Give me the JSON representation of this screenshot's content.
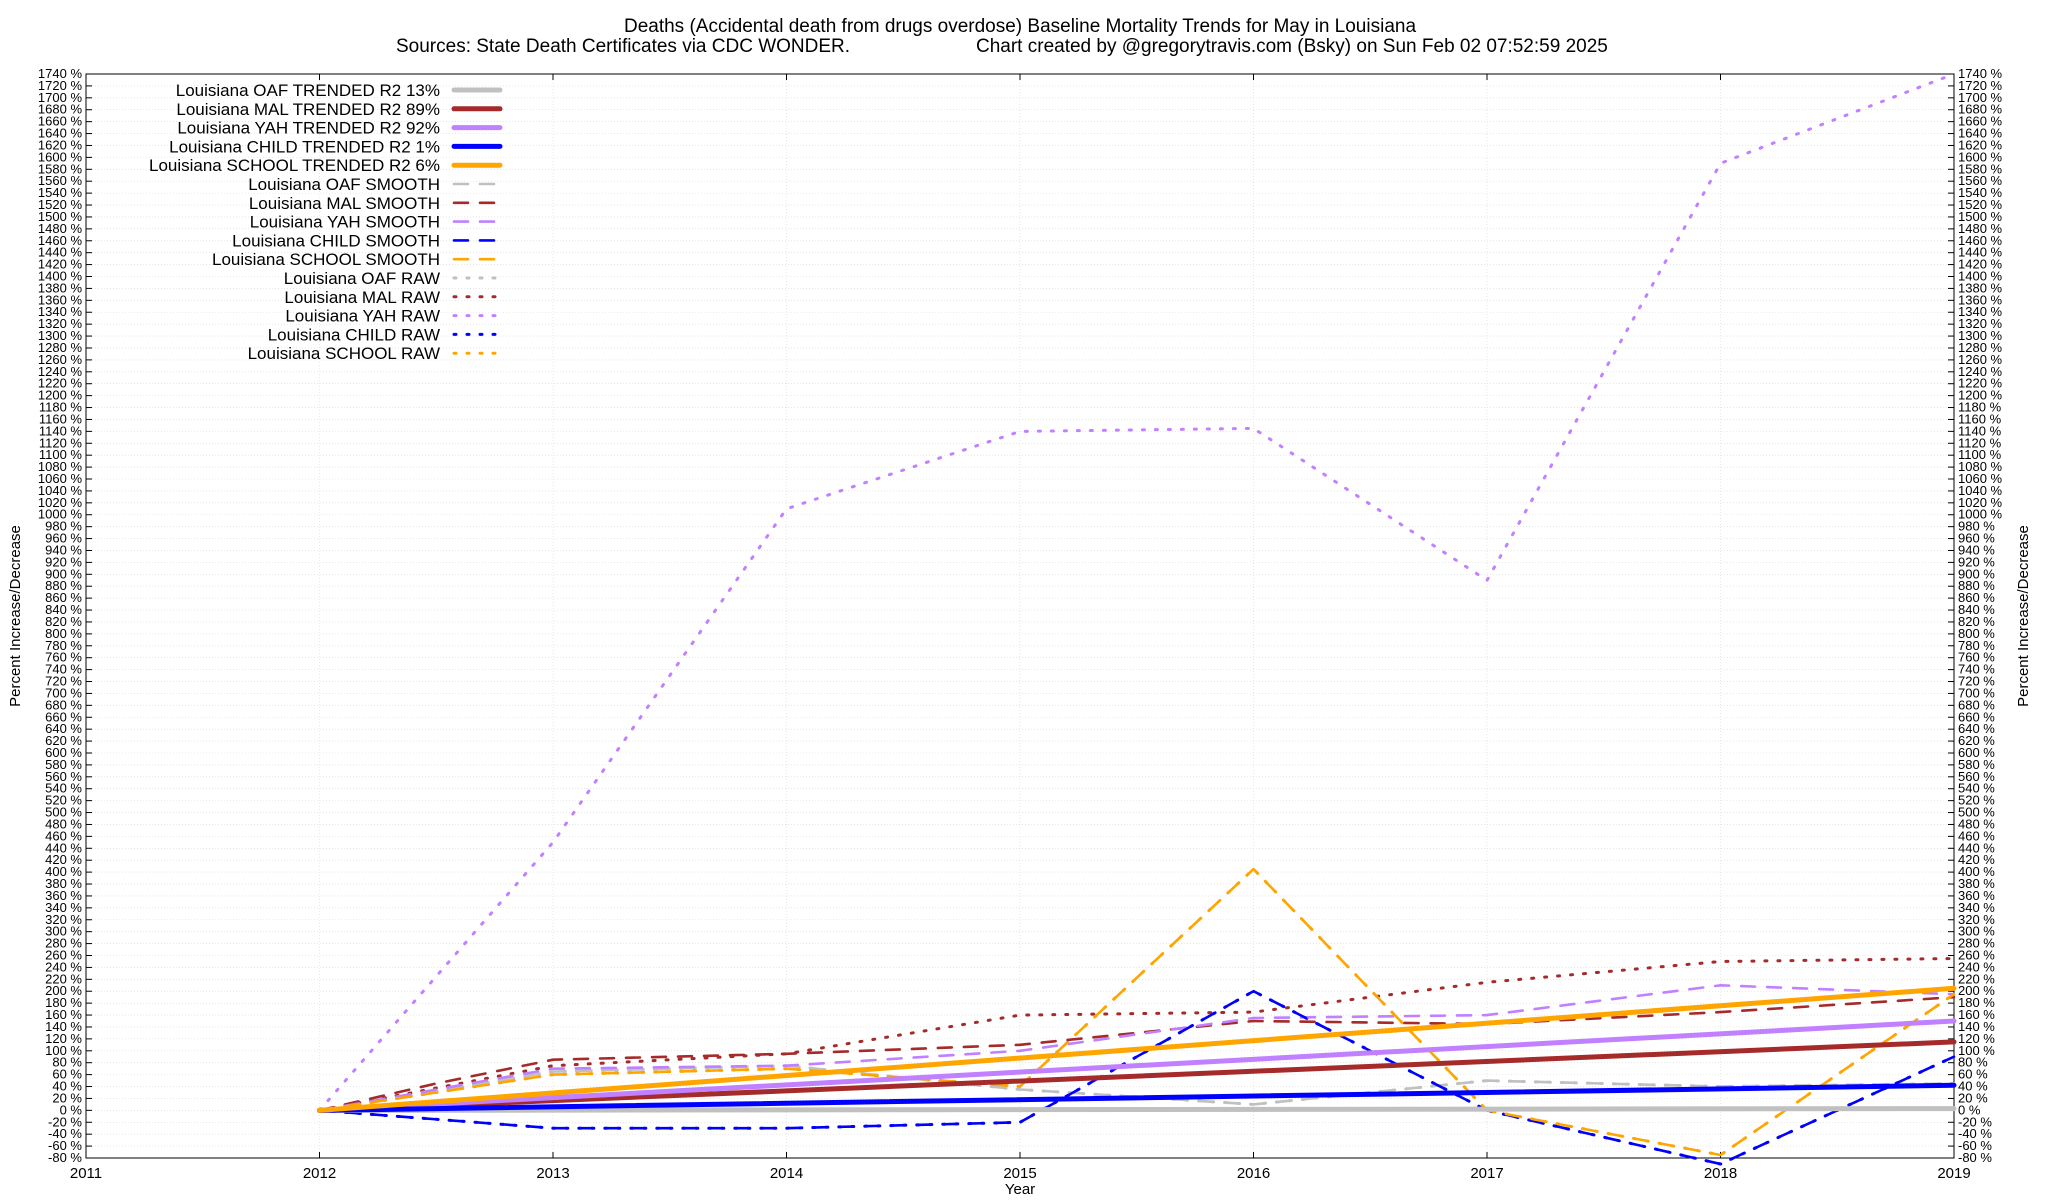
{
  "chart_data": {
    "type": "line",
    "title": "Deaths (Accidental death from drugs overdose)  Baseline Mortality Trends for May in Louisiana",
    "subtitle_left": "Sources: State Death Certificates via CDC WONDER.",
    "subtitle_right": "Chart created by @gregorytravis.com (Bsky) on Sun Feb 02 07:52:59 2025",
    "xlabel": "Year",
    "ylabel": "Percent Increase/Decrease",
    "ylabel_right": "Percent Increase/Decrease",
    "xlim": [
      2011,
      2019
    ],
    "ylim": [
      -80,
      1740
    ],
    "x_ticks": [
      "2011",
      "2012",
      "2013",
      "2014",
      "2015",
      "2016",
      "2017",
      "2018",
      "2019"
    ],
    "y_tick_step": 20,
    "y_tick_suffix": " %",
    "grid": true,
    "legend_position": "top-left",
    "series": [
      {
        "name": "Louisiana OAF TRENDED R2  13%",
        "style": "solid",
        "color": "#c0c0c0",
        "x": [
          2012,
          2019
        ],
        "values": [
          0,
          3
        ]
      },
      {
        "name": "Louisiana MAL TRENDED R2  89%",
        "style": "solid",
        "color": "#a52a2a",
        "x": [
          2012,
          2019
        ],
        "values": [
          0,
          115
        ]
      },
      {
        "name": "Louisiana YAH TRENDED R2  92%",
        "style": "solid",
        "color": "#c080ff",
        "x": [
          2012,
          2019
        ],
        "values": [
          0,
          150
        ]
      },
      {
        "name": "Louisiana CHILD TRENDED R2   1%",
        "style": "solid",
        "color": "#0000ff",
        "x": [
          2012,
          2019
        ],
        "values": [
          0,
          42
        ]
      },
      {
        "name": "Louisiana SCHOOL TRENDED R2   6%",
        "style": "solid",
        "color": "#ffa500",
        "x": [
          2012,
          2019
        ],
        "values": [
          0,
          205
        ]
      },
      {
        "name": "Louisiana OAF SMOOTH",
        "style": "dashed",
        "color": "#c0c0c0",
        "x": [
          2012,
          2013,
          2014,
          2015,
          2016,
          2017,
          2018,
          2019
        ],
        "values": [
          0,
          65,
          75,
          35,
          10,
          50,
          40,
          45
        ]
      },
      {
        "name": "Louisiana MAL SMOOTH",
        "style": "dashed",
        "color": "#a52a2a",
        "x": [
          2012,
          2012.5,
          2013,
          2014,
          2015,
          2016,
          2017,
          2018,
          2019
        ],
        "values": [
          0,
          45,
          85,
          95,
          110,
          150,
          145,
          165,
          190
        ]
      },
      {
        "name": "Louisiana YAH SMOOTH",
        "style": "dashed",
        "color": "#c080ff",
        "x": [
          2012,
          2013,
          2014,
          2015,
          2016,
          2017,
          2018,
          2019
        ],
        "values": [
          0,
          70,
          75,
          100,
          155,
          160,
          210,
          195
        ]
      },
      {
        "name": "Louisiana CHILD SMOOTH",
        "style": "dashed",
        "color": "#0000ff",
        "x": [
          2012,
          2013,
          2014,
          2015,
          2016,
          2017,
          2018,
          2019
        ],
        "values": [
          0,
          -30,
          -30,
          -20,
          200,
          0,
          -90,
          90
        ]
      },
      {
        "name": "Louisiana SCHOOL SMOOTH",
        "style": "dashed",
        "color": "#ffa500",
        "x": [
          2012,
          2013,
          2014,
          2015,
          2016,
          2017,
          2018,
          2019
        ],
        "values": [
          0,
          60,
          70,
          40,
          405,
          0,
          -75,
          195
        ]
      },
      {
        "name": "Louisiana OAF RAW",
        "style": "dotted",
        "color": "#c0c0c0",
        "x": [
          2012,
          2013,
          2014,
          2015,
          2016,
          2017,
          2018,
          2019
        ],
        "values": [
          0,
          65,
          75,
          35,
          10,
          50,
          40,
          45
        ]
      },
      {
        "name": "Louisiana MAL RAW",
        "style": "dotted",
        "color": "#a52a2a",
        "x": [
          2012,
          2013,
          2014,
          2015,
          2016,
          2017,
          2018,
          2019
        ],
        "values": [
          0,
          75,
          95,
          160,
          165,
          215,
          250,
          255
        ]
      },
      {
        "name": "Louisiana YAH RAW",
        "style": "dotted",
        "color": "#c080ff",
        "x": [
          2012,
          2013,
          2014,
          2015,
          2016,
          2017,
          2018,
          2019
        ],
        "values": [
          0,
          450,
          1010,
          1140,
          1145,
          890,
          1590,
          1740
        ]
      },
      {
        "name": "Louisiana CHILD RAW",
        "style": "dotted",
        "color": "#0000ff",
        "x": [
          2012,
          2013,
          2014,
          2015,
          2016,
          2017,
          2018,
          2019
        ],
        "values": [
          0,
          -30,
          -30,
          -20,
          200,
          0,
          -90,
          90
        ]
      },
      {
        "name": "Louisiana SCHOOL RAW",
        "style": "dotted",
        "color": "#ffa500",
        "x": [
          2012,
          2013,
          2014,
          2015,
          2016,
          2017,
          2018,
          2019
        ],
        "values": [
          0,
          60,
          70,
          40,
          405,
          0,
          -75,
          195
        ]
      }
    ]
  }
}
